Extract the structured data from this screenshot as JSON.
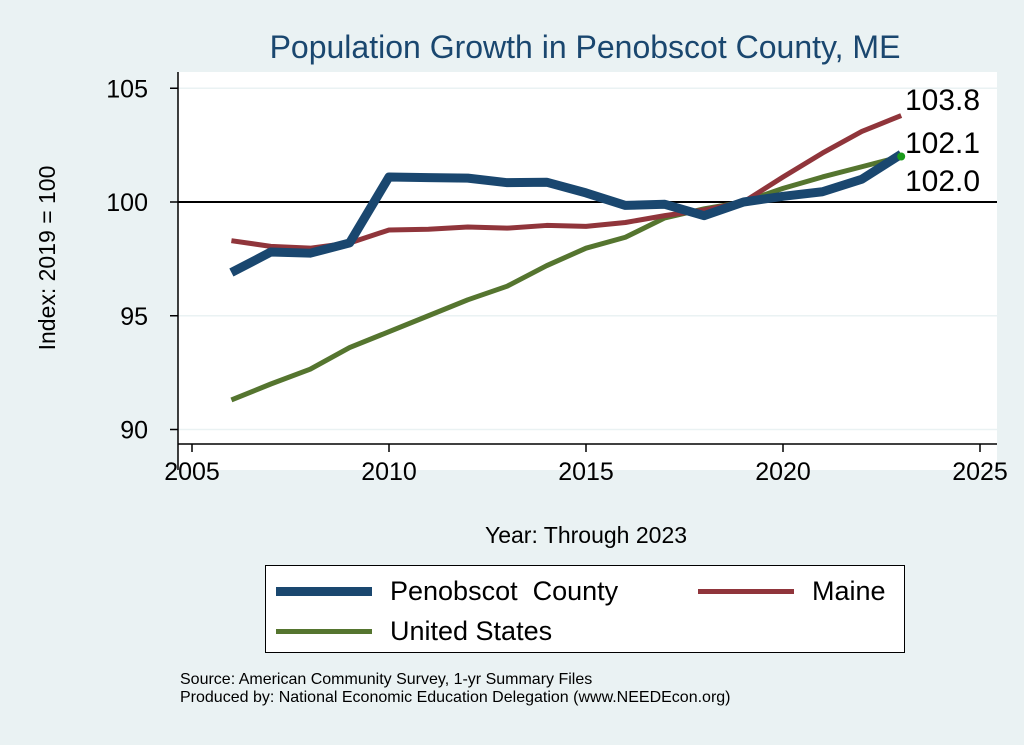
{
  "chart_data": {
    "type": "line",
    "title": "Population Growth in Penobscot County, ME",
    "xlabel": "Year: Through 2023",
    "ylabel": "Index: 2019 = 100",
    "xlim": [
      2005,
      2025
    ],
    "ylim": [
      89.5,
      105.7
    ],
    "xticks": [
      "2005",
      "2010",
      "2015",
      "2020",
      "2025"
    ],
    "yticks": [
      "90",
      "95",
      "100",
      "105"
    ],
    "reference_line": 100,
    "grid": true,
    "legend_position": "bottom",
    "x": [
      2006,
      2007,
      2008,
      2009,
      2010,
      2011,
      2012,
      2013,
      2014,
      2015,
      2016,
      2017,
      2018,
      2019,
      2020,
      2021,
      2022,
      2023
    ],
    "series": [
      {
        "name": "Penobscot  County",
        "color": "#1a476f",
        "width": 9,
        "values": [
          96.9,
          97.8,
          97.75,
          98.2,
          101.1,
          101.07,
          101.05,
          100.85,
          100.87,
          100.4,
          99.85,
          99.9,
          99.4,
          100.0,
          100.25,
          100.45,
          101.0,
          102.1
        ],
        "end_label": "102.1"
      },
      {
        "name": "Maine",
        "color": "#90353b",
        "width": 5,
        "values": [
          98.3,
          98.05,
          97.97,
          98.2,
          98.77,
          98.8,
          98.9,
          98.85,
          98.97,
          98.93,
          99.1,
          99.4,
          99.65,
          100.0,
          101.1,
          102.15,
          103.1,
          103.8
        ],
        "end_label": "103.8"
      },
      {
        "name": "United States",
        "color": "#55752f",
        "width": 5,
        "values": [
          91.3,
          92.0,
          92.65,
          93.6,
          94.3,
          95.0,
          95.7,
          96.3,
          97.2,
          97.97,
          98.45,
          99.3,
          99.7,
          100.0,
          100.6,
          101.1,
          101.55,
          102.0
        ],
        "end_label": "102.0"
      }
    ]
  },
  "notes": {
    "source": "Source: American Community Survey, 1-yr Summary Files",
    "produced": "Produced by: National Economic Education Delegation (www.NEEDEcon.org)"
  }
}
